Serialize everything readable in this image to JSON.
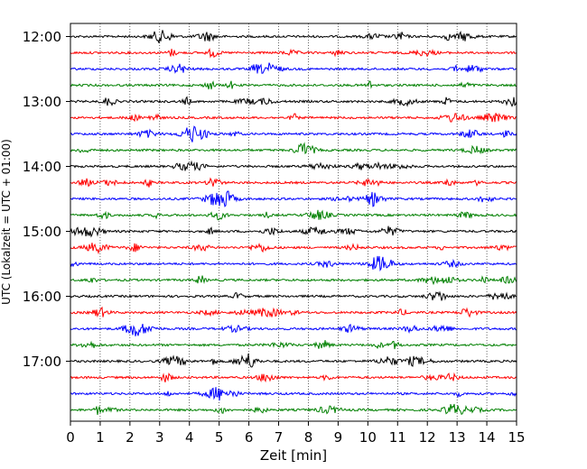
{
  "chart_data": {
    "type": "line",
    "title": "",
    "xlabel": "Zeit  [min]",
    "ylabel": "UTC (Lokalzeit = UTC + 01:00)",
    "xlim": [
      0,
      15
    ],
    "x_ticks": [
      "0",
      "1",
      "2",
      "3",
      "4",
      "5",
      "6",
      "7",
      "8",
      "9",
      "10",
      "11",
      "12",
      "13",
      "14",
      "15"
    ],
    "y_ticks": [
      {
        "label": "12:00",
        "hours": 12
      },
      {
        "label": "13:00",
        "hours": 13
      },
      {
        "label": "14:00",
        "hours": 14
      },
      {
        "label": "15:00",
        "hours": 15
      },
      {
        "label": "16:00",
        "hours": 16
      },
      {
        "label": "17:00",
        "hours": 17
      }
    ],
    "trace_interval_min": 15,
    "first_trace": "12:00",
    "trace_count": 24,
    "trace_colors": [
      "#000000",
      "#ff0000",
      "#0000ff",
      "#008000"
    ],
    "grid": {
      "vertical_dotted": true
    }
  }
}
